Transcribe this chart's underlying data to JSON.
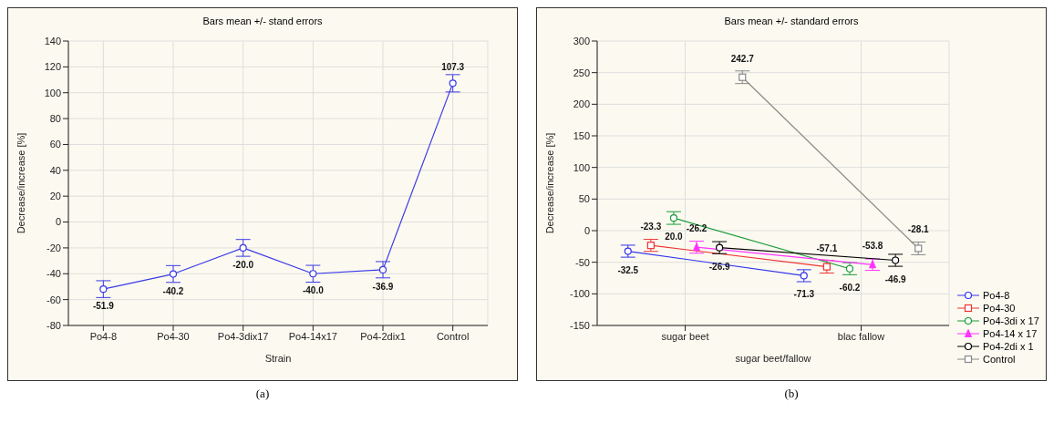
{
  "chart_data": [
    {
      "type": "line",
      "title": "Bars mean +/- stand errors",
      "xlabel": "Strain",
      "ylabel": "Decrease/increase [%]",
      "categories": [
        "Po4-8",
        "Po4-30",
        "Po4-3dix17",
        "Po4-14x17",
        "Po4-2dix1",
        "Control"
      ],
      "values": [
        -51.9,
        -40.2,
        -20.0,
        -40.0,
        -36.9,
        107.3
      ],
      "errors": [
        6.5,
        6.5,
        6.5,
        6.5,
        6.3,
        6.7
      ],
      "value_labels": [
        "-51.9",
        "-40.2",
        "-20.0",
        "-40.0",
        "-36.9",
        "107.3"
      ],
      "color": "#3a3ae6",
      "marker": "circle",
      "ylim": [
        -80,
        140
      ],
      "yticks": [
        -80,
        -60,
        -40,
        -20,
        0,
        20,
        40,
        60,
        80,
        100,
        120,
        140
      ],
      "grid": true,
      "annotations": [
        "(a)"
      ]
    },
    {
      "type": "line",
      "title": "Bars mean +/- standard errors",
      "xlabel": "sugar beet/fallow",
      "ylabel": "Decrease/increase [%]",
      "categories": [
        "sugar beet",
        "blac fallow"
      ],
      "ylim": [
        -150,
        300
      ],
      "yticks": [
        -150,
        -100,
        -50,
        0,
        50,
        100,
        150,
        200,
        250,
        300
      ],
      "grid": true,
      "legend": "bottom right",
      "annotations": [
        "(b)"
      ],
      "series": [
        {
          "name": "Po4-8",
          "color": "#3333ee",
          "marker": "circle",
          "values": [
            -32.5,
            -71.3
          ],
          "errors": [
            9.5,
            9.5
          ],
          "value_labels": [
            "-32.5",
            "-71.3"
          ]
        },
        {
          "name": "Po4-30",
          "color": "#ee3333",
          "marker": "square",
          "values": [
            -23.3,
            -57.1
          ],
          "errors": [
            9.5,
            10
          ],
          "value_labels": [
            "-23.3",
            "-57.1"
          ]
        },
        {
          "name": "Po4-3di x 17",
          "color": "#1a9a3a",
          "marker": "circle",
          "values": [
            20.0,
            -60.2
          ],
          "errors": [
            10,
            9.5
          ],
          "value_labels": [
            "20.0",
            "-60.2"
          ]
        },
        {
          "name": "Po4-14 x 17",
          "color": "#ff33ff",
          "marker": "triangle",
          "values": [
            -26.2,
            -53.8
          ],
          "errors": [
            9.5,
            9
          ],
          "value_labels": [
            "-26.2",
            "-53.8"
          ]
        },
        {
          "name": "Po4-2di x 1",
          "color": "#000000",
          "marker": "circle",
          "values": [
            -26.9,
            -46.9
          ],
          "errors": [
            9.5,
            9.5
          ],
          "value_labels": [
            "-26.9",
            "-46.9"
          ]
        },
        {
          "name": "Control",
          "color": "#888888",
          "marker": "square",
          "values": [
            242.7,
            -28.1
          ],
          "errors": [
            10,
            10
          ],
          "value_labels": [
            "242.7",
            "-28.1"
          ]
        }
      ]
    }
  ]
}
